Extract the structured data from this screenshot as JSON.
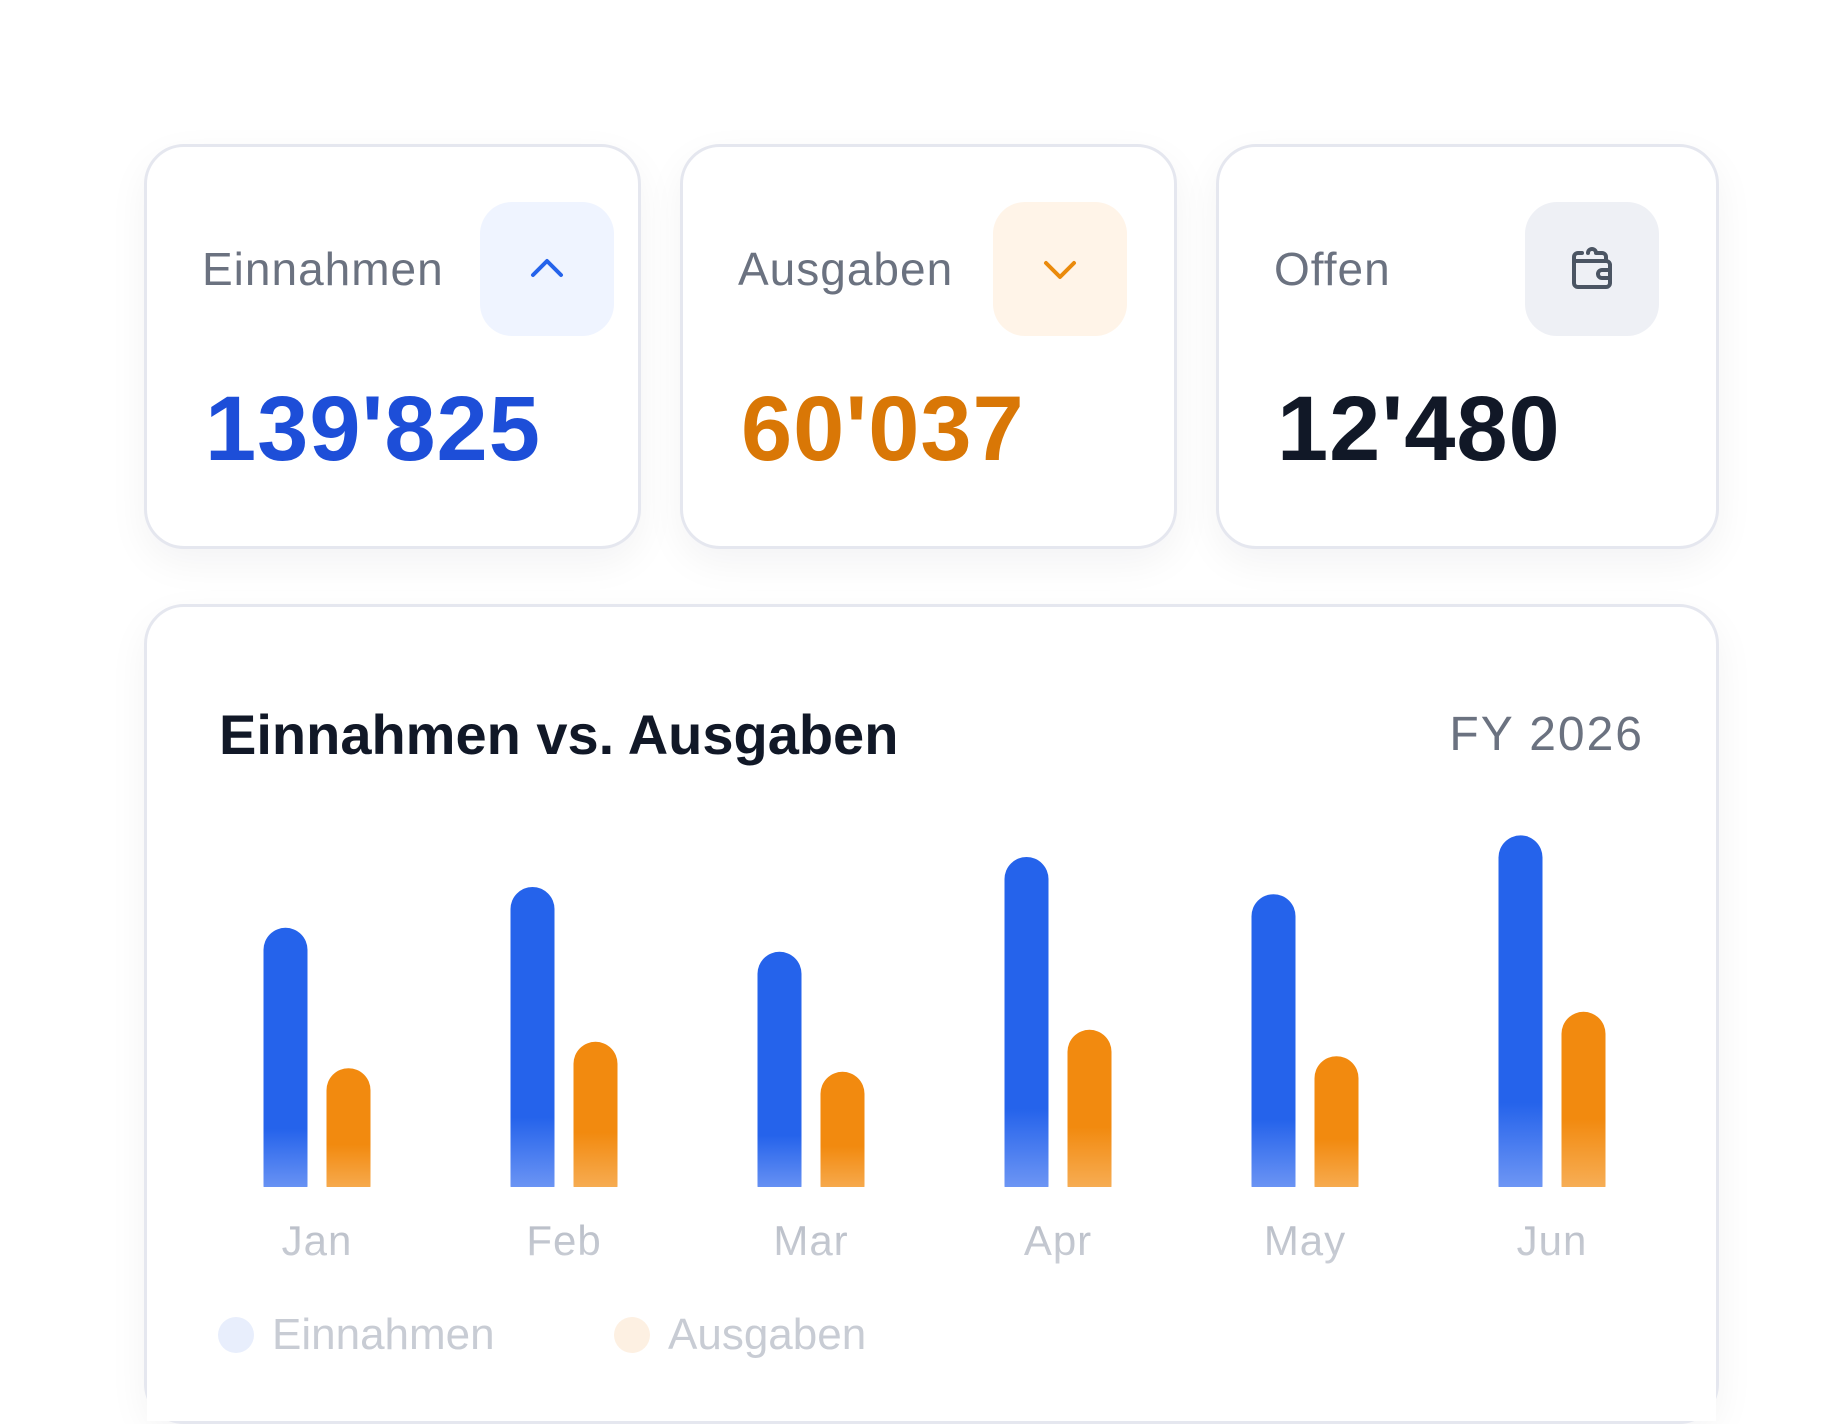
{
  "stats": [
    {
      "label": "Einnahmen",
      "value": "139'825",
      "value_color": "#1d4ed8",
      "icon": "chevron-up-icon",
      "icon_bg": "#eff4ff",
      "icon_color": "#2563eb"
    },
    {
      "label": "Ausgaben",
      "value": "60'037",
      "value_color": "#d97706",
      "icon": "chevron-down-icon",
      "icon_bg": "#fff4e8",
      "icon_color": "#ea8a0c"
    },
    {
      "label": "Offen",
      "value": "12'480",
      "value_color": "#111827",
      "icon": "wallet-icon",
      "icon_bg": "#eef0f5",
      "icon_color": "#4b5563"
    }
  ],
  "chart_card": {
    "title": "Einnahmen vs. Ausgaben",
    "period": "FY 2026"
  },
  "legend": {
    "einnahmen": "Einnahmen",
    "ausgaben": "Ausgaben"
  },
  "colors": {
    "einnahmen": "#2563eb",
    "ausgaben": "#f28a0f"
  },
  "chart_data": {
    "type": "bar",
    "categories": [
      "Jan",
      "Feb",
      "Mar",
      "Apr",
      "May",
      "Jun"
    ],
    "series": [
      {
        "name": "Einnahmen",
        "values": [
          21600,
          25000,
          19600,
          27500,
          24400,
          29300
        ]
      },
      {
        "name": "Ausgaben",
        "values": [
          9900,
          12100,
          9600,
          13100,
          10900,
          14600
        ]
      }
    ],
    "ylim": [
      0,
      30000
    ],
    "grid": false,
    "legend_position": "bottom-left"
  }
}
